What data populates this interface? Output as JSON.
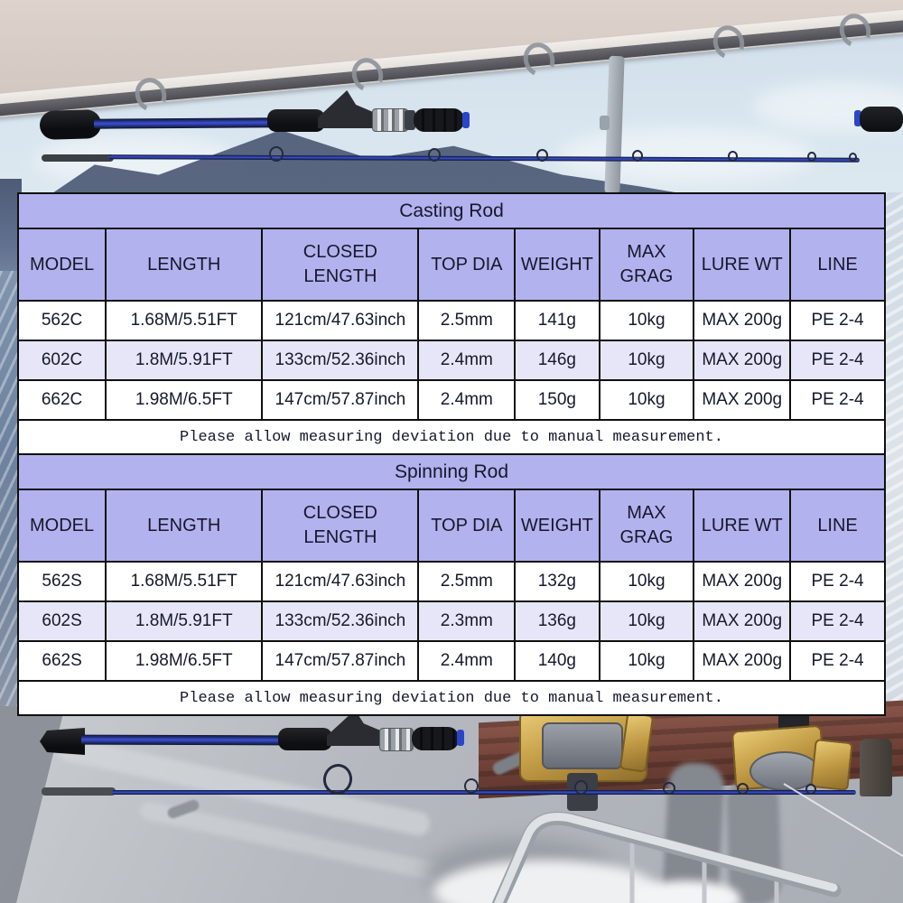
{
  "colors": {
    "table_header": "#b2b2ee",
    "row_alt": "#e6e6f8",
    "row_default": "#ffffff",
    "border": "#101010",
    "text": "#16182c",
    "rod_blue": "#2a46c8",
    "reel_gold": "#c19a44"
  },
  "tables": [
    {
      "title": "Casting Rod",
      "columns": [
        "MODEL",
        "LENGTH",
        "CLOSED\nLENGTH",
        "TOP DIA",
        "WEIGHT",
        "MAX\nGRAG",
        "LURE WT",
        "LINE"
      ],
      "rows": [
        [
          "562C",
          "1.68M/5.51FT",
          "121cm/47.63inch",
          "2.5mm",
          "141g",
          "10kg",
          "MAX 200g",
          "PE 2-4"
        ],
        [
          "602C",
          "1.8M/5.91FT",
          "133cm/52.36inch",
          "2.4mm",
          "146g",
          "10kg",
          "MAX 200g",
          "PE 2-4"
        ],
        [
          "662C",
          "1.98M/6.5FT",
          "147cm/57.87inch",
          "2.4mm",
          "150g",
          "10kg",
          "MAX 200g",
          "PE 2-4"
        ]
      ],
      "note": "Please allow measuring deviation due to manual measurement."
    },
    {
      "title": "Spinning Rod",
      "columns": [
        "MODEL",
        "LENGTH",
        "CLOSED\nLENGTH",
        "TOP DIA",
        "WEIGHT",
        "MAX\nGRAG",
        "LURE WT",
        "LINE"
      ],
      "rows": [
        [
          "562S",
          "1.68M/5.51FT",
          "121cm/47.63inch",
          "2.5mm",
          "132g",
          "10kg",
          "MAX 200g",
          "PE 2-4"
        ],
        [
          "602S",
          "1.8M/5.91FT",
          "133cm/52.36inch",
          "2.3mm",
          "136g",
          "10kg",
          "MAX 200g",
          "PE 2-4"
        ],
        [
          "662S",
          "1.98M/6.5FT",
          "147cm/57.87inch",
          "2.4mm",
          "140g",
          "10kg",
          "MAX 200g",
          "PE 2-4"
        ]
      ],
      "note": "Please allow measuring deviation due to manual measurement."
    }
  ]
}
